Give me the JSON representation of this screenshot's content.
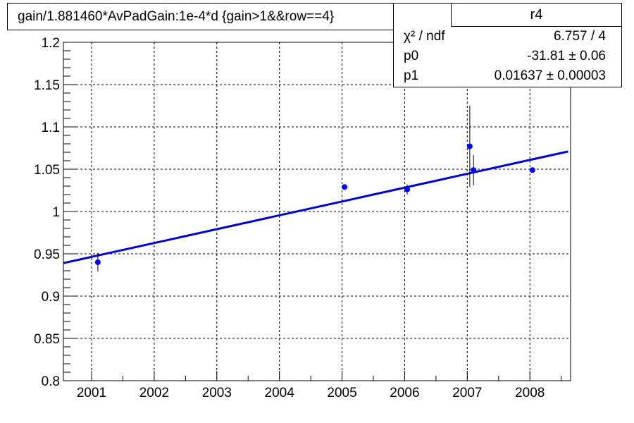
{
  "chart_data": {
    "type": "scatter",
    "title": "gain/1.881460*AvPadGain:1e-4*d  {gain>1&&row==4}",
    "xlabel": "",
    "ylabel": "",
    "xlim": [
      2000.55,
      2008.65
    ],
    "ylim": [
      0.8,
      1.2
    ],
    "grid": true,
    "x_ticks": [
      2001,
      2002,
      2003,
      2004,
      2005,
      2006,
      2007,
      2008
    ],
    "x_tick_labels": [
      "2001",
      "2002",
      "2003",
      "2004",
      "2005",
      "2006",
      "2007",
      "2008"
    ],
    "y_ticks": [
      0.8,
      0.85,
      0.9,
      0.95,
      1.0,
      1.05,
      1.1,
      1.15,
      1.2
    ],
    "y_tick_labels": [
      "0.8",
      "0.85",
      "0.9",
      "0.95",
      "1",
      "1.05",
      "1.1",
      "1.15",
      "1.2"
    ],
    "points": [
      {
        "x": 2001.1,
        "y": 0.94,
        "err": 0.011
      },
      {
        "x": 2005.04,
        "y": 1.029,
        "err": 0.003
      },
      {
        "x": 2006.04,
        "y": 1.026,
        "err": 0.006
      },
      {
        "x": 2007.04,
        "y": 1.077,
        "err": 0.048
      },
      {
        "x": 2007.1,
        "y": 1.049,
        "err": 0.018
      },
      {
        "x": 2008.04,
        "y": 1.049,
        "err": 0.003
      }
    ],
    "fit": {
      "p0": -31.81,
      "p1": 0.01637
    },
    "colors": {
      "marker": "#0000ff",
      "fit": "#0000cc",
      "grid": "#000000",
      "axis": "#000000"
    },
    "stats": {
      "name": "r4",
      "rows": [
        {
          "label": "χ² / ndf",
          "value": "6.757 / 4"
        },
        {
          "label": "p0",
          "value": "-31.81 ± 0.06"
        },
        {
          "label": "p1",
          "value": "0.01637  ± 0.00003"
        }
      ]
    }
  }
}
